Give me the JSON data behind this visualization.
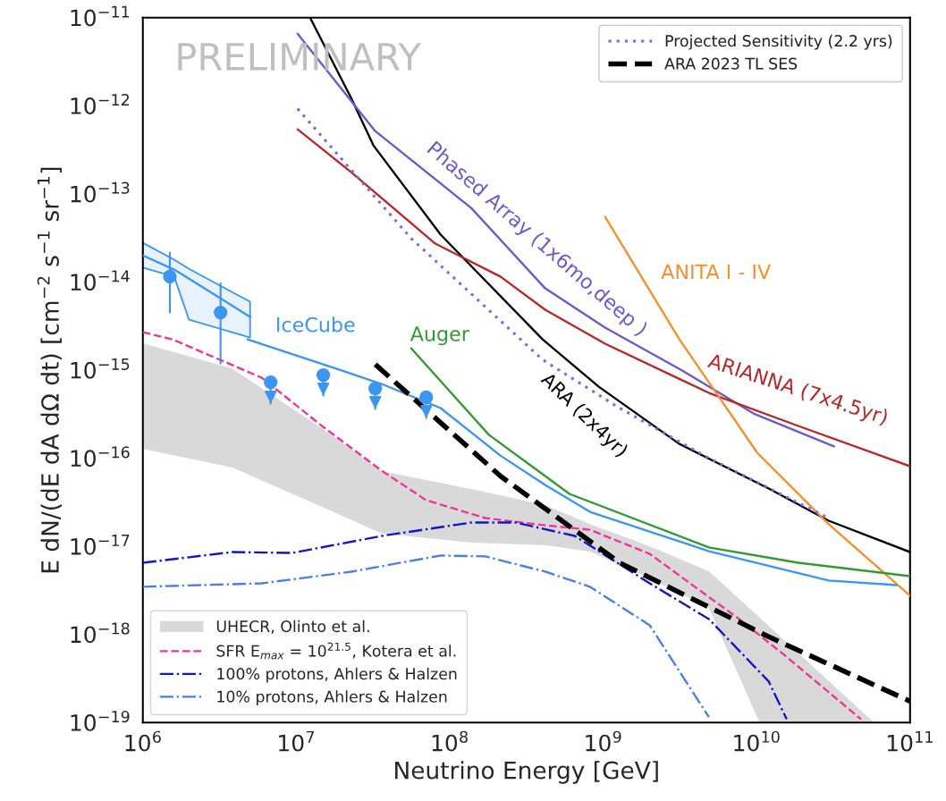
{
  "chart_data": {
    "type": "line",
    "xlabel": "Neutrino Energy [GeV]",
    "ylabel": "E dN/(dE dA dΩ dt) [cm$^{−2}$ s$^{−1}$ sr$^{−1}$]",
    "log": "xy",
    "xlim": [
      1000000.0,
      100000000000.0
    ],
    "ylim": [
      1e-19,
      1e-11
    ],
    "xticks": [
      {
        "value": 1000000.0,
        "label": "10$^{6}$"
      },
      {
        "value": 10000000.0,
        "label": "10$^{7}$"
      },
      {
        "value": 100000000.0,
        "label": "10$^{8}$"
      },
      {
        "value": 1000000000.0,
        "label": "10$^{9}$"
      },
      {
        "value": 10000000000.0,
        "label": "10$^{10}$"
      },
      {
        "value": 100000000000.0,
        "label": "10$^{11}$"
      }
    ],
    "yticks": [
      {
        "value": 1e-19,
        "label": "10$^{−19}$"
      },
      {
        "value": 1e-18,
        "label": "10$^{−18}$"
      },
      {
        "value": 1e-17,
        "label": "10$^{−17}$"
      },
      {
        "value": 1e-16,
        "label": "10$^{−16}$"
      },
      {
        "value": 1e-15,
        "label": "10$^{−15}$"
      },
      {
        "value": 1e-14,
        "label": "10$^{−14}$"
      },
      {
        "value": 1e-13,
        "label": "10$^{−13}$"
      },
      {
        "value": 1e-12,
        "label": "10$^{−12}$"
      },
      {
        "value": 1e-11,
        "label": "10$^{−11}$"
      }
    ],
    "legend": [
      "bottom left",
      "top right"
    ],
    "series": [
      {
        "name": "UHECR, Olinto et al.",
        "color": "#d9d9d9",
        "x": [
          1000000.0,
          3830000.0,
          14700000.0,
          36000000.0,
          138000000.0,
          419000000.0,
          820000000.0,
          2010000000.0,
          4890000000.0,
          10500000000.0,
          29500000000.0,
          57700000000.0
        ],
        "values": [
          null,
          null,
          null,
          null,
          null,
          null,
          null,
          null,
          null,
          null,
          null,
          null
        ],
        "upper": [
          1.99e-15,
          1.03e-15,
          2.16e-16,
          7.05e-17,
          4.42e-17,
          2.9e-17,
          1.77e-17,
          9.9e-18,
          5.15e-18,
          1.53e-18,
          2.92e-19,
          1e-19
        ],
        "lower": [
          1.29e-16,
          7.9e-17,
          2.83e-17,
          1.41e-17,
          1.11e-17,
          1.04e-17,
          8.8e-18,
          4.38e-18,
          2.02e-18,
          1e-19,
          1e-19,
          1e-19
        ]
      },
      {
        "name": "SFR E$_{max}$ = 10$^{21.5}$, Kotera et al.",
        "color": "#f0359a",
        "line_style": "dashed",
        "x": [
          1000000.0,
          1560000.0,
          5960000.0,
          14700000.0,
          36000000.0,
          70300000.0,
          171000000.0,
          419000000.0,
          820000000.0,
          2010000000.0,
          7710000000.0,
          15100000000.0,
          47900000000.0
        ],
        "values": [
          2.69e-15,
          2.23e-15,
          8.18e-16,
          2.32e-16,
          7.21e-17,
          3.33e-17,
          2.09e-17,
          1.73e-17,
          1.54e-17,
          8.2e-18,
          1.49e-18,
          5.87e-19,
          1.09e-19
        ]
      },
      {
        "name": "100% protons, Ahlers & Halzen",
        "color": "#1414c8",
        "line_style": "dashdot",
        "x": [
          1000000.0,
          3830000.0,
          9400000.0,
          36000000.0,
          138000000.0,
          269000000.0,
          653000000.0,
          2010000000.0,
          4890000000.0,
          12000000000.0,
          15700000000.0
        ],
        "values": [
          6.5e-18,
          8.6e-18,
          8.4e-18,
          1.31e-17,
          1.86e-17,
          1.86e-17,
          1.31e-17,
          3.8e-18,
          1.49e-18,
          2.92e-19,
          1.09e-19
        ]
      },
      {
        "name": "10% protons, Ahlers & Halzen",
        "color": "#4a7fe8",
        "line_style": "dashdot",
        "x": [
          1000000.0,
          5960000.0,
          22800000.0,
          87300000.0,
          171000000.0,
          419000000.0,
          820000000.0,
          2010000000.0,
          4890000000.0
        ],
        "values": [
          3.47e-18,
          3.8e-18,
          5.15e-18,
          7.85e-18,
          7.68e-18,
          5.15e-18,
          3.47e-18,
          1.27e-18,
          1.15e-19
        ]
      },
      {
        "color": "#000000",
        "x": [
          12300000.0,
          22800000.0,
          31800000.0,
          87300000.0,
          403000000.0,
          937000000.0,
          3140000000.0,
          12000000000.0,
          29500000000.0,
          100000000000.0
        ],
        "values": [
          1e-11,
          1.22e-12,
          3.55e-13,
          3.44e-14,
          2.23e-15,
          6.47e-16,
          1.45e-16,
          4.52e-17,
          1.95e-17,
          8.6e-18
        ]
      },
      {
        "color": "#6a5acd",
        "x": [
          10200000.0,
          32700000.0,
          138000000.0,
          419000000.0,
          1030000000.0,
          3140000000.0,
          9550000000.0,
          32000000000.0
        ],
        "values": [
          6.56e-12,
          5.15e-13,
          6.92e-14,
          8.45e-15,
          3.03e-15,
          1.03e-15,
          3.21e-16,
          1.36e-16
        ]
      },
      {
        "color": "#b82828",
        "x": [
          10200000.0,
          22800000.0,
          80500000.0,
          214000000.0,
          419000000.0,
          1030000000.0,
          4890000000.0,
          18700000000.0,
          100000000000.0
        ],
        "values": [
          5.4e-13,
          1.76e-13,
          2.72e-14,
          1.15e-14,
          4.83e-15,
          1.99e-15,
          5.5e-16,
          2.32e-16,
          8.1e-17
        ]
      },
      {
        "color": "#f7902a",
        "x": [
          1030000000.0,
          3140000000.0,
          10100000000.0,
          29500000000.0,
          100000000000.0
        ],
        "values": [
          5.47e-14,
          2.23e-15,
          1.15e-16,
          1.78e-17,
          2.74e-18
        ]
      },
      {
        "color": "#339933",
        "x": [
          56000000.0,
          180000000.0,
          419000000.0,
          603000000.0,
          4890000000.0,
          18700000000.0,
          100000000000.0
        ],
        "values": [
          1.77e-15,
          1.84e-16,
          6.27e-17,
          3.93e-17,
          9.7e-18,
          6.5e-18,
          4.58e-18
        ]
      },
      {
        "color": "#3a96f0",
        "x": [
          4810000.0,
          18400000.0,
          36000000.0,
          87300000.0,
          214000000.0,
          419000000.0,
          820000000.0,
          4890000000.0,
          29500000000.0,
          82000000000.0
        ],
        "values": [
          2.23e-15,
          1.03e-15,
          6.95e-16,
          3.7e-16,
          1.07e-16,
          4.97e-17,
          2.46e-17,
          8.8e-18,
          4.08e-18,
          3.63e-18
        ]
      },
      {
        "color": "#3a96f0",
        "x": [
          1000000.0,
          1600000.0,
          2000000.0,
          5000000.0
        ],
        "values": [
          2e-14,
          1.38e-14,
          1.09e-14,
          4e-15
        ],
        "lower": [
          1.45e-14,
          1.15e-14,
          3.73e-15,
          2.34e-15
        ],
        "upper": [
          2.78e-14,
          1.79e-14,
          1.41e-14,
          5.96e-15
        ]
      },
      {
        "type": "scatter",
        "color": "#3a96f0",
        "marker": "circle",
        "x": [
          1500000.0,
          3210000.0,
          6810000.0,
          15000000.0,
          32700000.0,
          70300000.0
        ],
        "values": [
          1.15e-14,
          4.5e-15,
          7.28e-16,
          8.77e-16,
          6.18e-16,
          4.9e-16
        ],
        "errors": [
          [
            4.5e-15,
            2.15e-14
          ],
          [
            1.19e-15,
            9.7e-15
          ],
          [
            4.16e-16,
            7.28e-16
          ],
          [
            5.13e-16,
            8.77e-16
          ],
          [
            3.61e-16,
            6.18e-16
          ],
          [
            2.86e-16,
            4.9e-16
          ]
        ]
      },
      {
        "name": "Projected Sensitivity (2.2 yrs)",
        "color": "#7b68ee",
        "line_style": "dotted",
        "x": [
          10200000.0,
          56000000.0,
          403000000.0,
          1280000000.0,
          4890000000.0,
          29500000000.0
        ],
        "values": [
          9.25e-13,
          3.13e-14,
          1.31e-15,
          3.7e-16,
          1e-16,
          2.09e-17
        ]
      },
      {
        "name": "ARA 2023 TL SES",
        "color": "#000000",
        "line_style": "dashed",
        "x": [
          32700000.0,
          214000000.0,
          1280000000.0,
          12000000000.0,
          100000000000.0
        ],
        "values": [
          1.16e-15,
          6.27e-17,
          6.5e-18,
          9.4e-19,
          1.74e-19
        ]
      }
    ],
    "annotations": [
      "PRELIMINARY",
      "IceCube",
      "Auger",
      "Phased Array (1x6mo,deep )",
      "ARA (2x4yr)",
      "ANITA I - IV",
      "ARIANNA (7x4.5yr)"
    ]
  }
}
